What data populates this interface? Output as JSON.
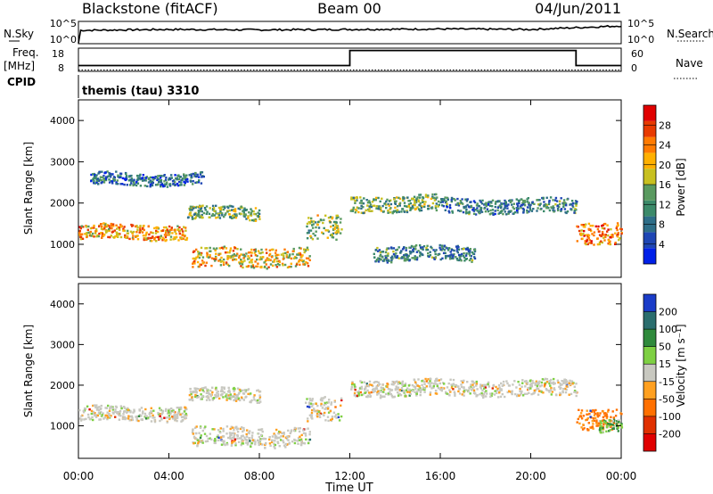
{
  "header": {
    "station": "Blackstone (fitACF)",
    "beam": "Beam 00",
    "date": "04/Jun/2011"
  },
  "top_panels": {
    "nsky_label": "N.Sky",
    "nsky_ticks": [
      "10^5",
      "10^0"
    ],
    "nsearch_label": "N.Search",
    "nsearch_ticks": [
      "10^5",
      "10^0"
    ],
    "freq_label": "Freq.",
    "freq_unit": "[MHz]",
    "freq_ticks": [
      "18",
      "8"
    ],
    "nave_label": "Nave",
    "nave_ticks": [
      "60",
      "0"
    ],
    "cpid_label": "CPID",
    "cpid_value": "themis (tau) 3310"
  },
  "power_scale": {
    "label": "Power [dB]",
    "ticks": [
      "28",
      "24",
      "20",
      "16",
      "12",
      "8",
      "4"
    ],
    "colors": [
      "#0020e8",
      "#1e46b4",
      "#2e6e88",
      "#3c8a6a",
      "#5a9a60",
      "#c8c020",
      "#ffb000",
      "#ff7a00",
      "#e83a00",
      "#e00000"
    ]
  },
  "velocity_scale": {
    "label": "Velocity [m s⁻¹]",
    "ticks": [
      "200",
      "100",
      "50",
      "15",
      "-15",
      "-50",
      "-100",
      "-200"
    ],
    "colors": [
      "#1a3cc8",
      "#2b6e6e",
      "#2f8a3c",
      "#7ed043",
      "#c8c8c0",
      "#ffa020",
      "#ff7000",
      "#e03000",
      "#e00000"
    ]
  },
  "x_axis": {
    "label": "Time UT",
    "ticks": [
      "00:00",
      "04:00",
      "08:00",
      "12:00",
      "16:00",
      "20:00",
      "00:00"
    ]
  },
  "chart_data": [
    {
      "type": "line",
      "title": "N.Sky / N.Search",
      "x": [
        "00:00",
        "04:00",
        "08:00",
        "12:00",
        "16:00",
        "20:00",
        "24:00"
      ],
      "ylabel": "N.Sky",
      "y2label": "N.Search",
      "scale": "log",
      "ylim": [
        "10^0",
        "10^5"
      ],
      "series": [
        {
          "name": "N.Sky",
          "values": [
            3.0,
            3.2,
            3.1,
            3.2,
            3.3,
            3.2,
            4.0
          ]
        }
      ]
    },
    {
      "type": "line",
      "title": "Freq. [MHz] / Nave",
      "x": [
        "00:00",
        "04:00",
        "08:00",
        "12:00",
        "16:00",
        "20:00",
        "22:00",
        "24:00"
      ],
      "ylabel": "Freq. [MHz]",
      "y2label": "Nave",
      "ylim": [
        8,
        18
      ],
      "series": [
        {
          "name": "Freq.",
          "values": [
            10.5,
            10.5,
            10.5,
            17.0,
            17.0,
            17.0,
            10.5,
            10.5
          ]
        }
      ]
    },
    {
      "type": "heatmap",
      "title": "Power",
      "xlabel": "Time UT",
      "ylabel": "Slant Range [km]",
      "yticks": [
        "1000",
        "2000",
        "3000",
        "4000"
      ],
      "colorbar": "Power [dB]",
      "crange": [
        0,
        32
      ],
      "bands": [
        {
          "t0": 0.0,
          "t1": 4.8,
          "r": 1320,
          "w": 180,
          "db": 22
        },
        {
          "t0": 4.8,
          "t1": 8.0,
          "r": 1780,
          "w": 160,
          "db": 14
        },
        {
          "t0": 5.0,
          "t1": 10.2,
          "r": 700,
          "w": 240,
          "db": 20
        },
        {
          "t0": 10.0,
          "t1": 11.6,
          "r": 1400,
          "w": 300,
          "db": 16
        },
        {
          "t0": 12.0,
          "t1": 16.0,
          "r": 2000,
          "w": 200,
          "db": 14
        },
        {
          "t0": 16.0,
          "t1": 22.0,
          "r": 1950,
          "w": 180,
          "db": 10
        },
        {
          "t0": 13.0,
          "t1": 17.5,
          "r": 800,
          "w": 180,
          "db": 10
        },
        {
          "t0": 22.0,
          "t1": 24.0,
          "r": 1300,
          "w": 260,
          "db": 24
        },
        {
          "t0": 0.5,
          "t1": 5.5,
          "r": 2600,
          "w": 150,
          "db": 8
        }
      ]
    },
    {
      "type": "heatmap",
      "title": "Velocity",
      "xlabel": "Time UT",
      "ylabel": "Slant Range [km]",
      "yticks": [
        "1000",
        "2000",
        "3000",
        "4000"
      ],
      "colorbar": "Velocity [m s⁻¹]",
      "crange": [
        -200,
        200
      ],
      "bands": [
        {
          "t0": 0.0,
          "t1": 4.8,
          "r": 1320,
          "w": 180,
          "v": 0
        },
        {
          "t0": 4.8,
          "t1": 8.0,
          "r": 1780,
          "w": 160,
          "v": 0
        },
        {
          "t0": 5.0,
          "t1": 10.2,
          "r": 750,
          "w": 240,
          "v": 0
        },
        {
          "t0": 10.0,
          "t1": 11.6,
          "r": 1400,
          "w": 300,
          "v": 0
        },
        {
          "t0": 12.0,
          "t1": 22.0,
          "r": 1950,
          "w": 200,
          "v": 0
        },
        {
          "t0": 22.0,
          "t1": 24.0,
          "r": 1200,
          "w": 260,
          "v": -60
        },
        {
          "t0": 23.0,
          "t1": 24.0,
          "r": 1050,
          "w": 160,
          "v": 30
        }
      ]
    }
  ]
}
